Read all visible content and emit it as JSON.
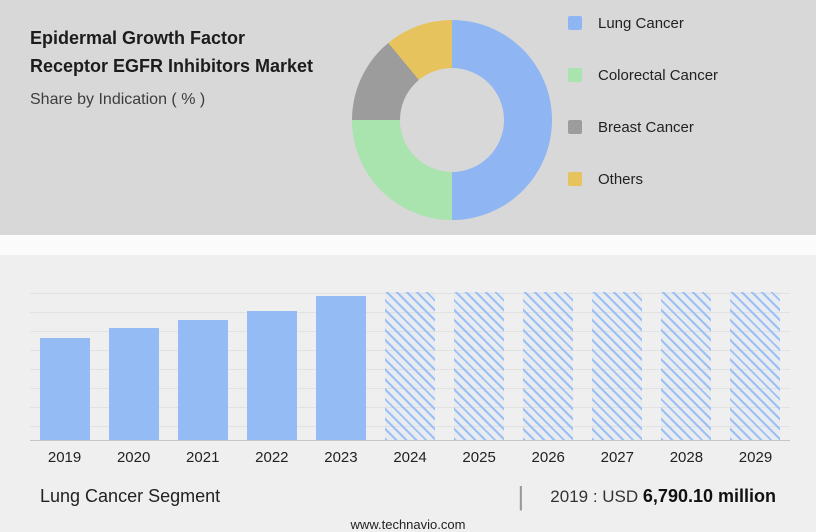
{
  "header": {
    "title_line1": "Epidermal Growth Factor",
    "title_line2": "Receptor EGFR Inhibitors Market",
    "subtitle": "Share by Indication ( % )"
  },
  "legend": {
    "items": [
      {
        "label": "Lung Cancer",
        "color": "#8fb5f2"
      },
      {
        "label": "Colorectal Cancer",
        "color": "#a9e3ae"
      },
      {
        "label": "Breast Cancer",
        "color": "#9c9c9c"
      },
      {
        "label": "Others",
        "color": "#e6c35c"
      }
    ]
  },
  "chart_data": [
    {
      "type": "pie",
      "subtype": "donut",
      "title": "Share by Indication ( % )",
      "labels": [
        "Lung Cancer",
        "Colorectal Cancer",
        "Breast Cancer",
        "Others"
      ],
      "values": [
        50,
        25,
        14,
        11
      ],
      "colors": [
        "#8fb5f2",
        "#a9e3ae",
        "#9c9c9c",
        "#e6c35c"
      ],
      "hole_ratio": 0.52,
      "legend_position": "right",
      "start_angle_deg": 0,
      "direction": "clockwise"
    },
    {
      "type": "bar",
      "categories": [
        "2019",
        "2020",
        "2021",
        "2022",
        "2023",
        "2024",
        "2025",
        "2026",
        "2027",
        "2028",
        "2029"
      ],
      "values_relative": [
        0.69,
        0.76,
        0.81,
        0.87,
        0.97,
        1,
        1,
        1,
        1,
        1,
        1
      ],
      "forecast_start": "2024",
      "forecast_style": "hatched",
      "bar_color": "#94bbf3",
      "grid": "horizontal",
      "known_values": {
        "2019": "USD 6,790.10 million"
      },
      "xlabel": "",
      "ylabel": ""
    }
  ],
  "footer": {
    "segment_label": "Lung Cancer Segment",
    "separator": "|",
    "value_prefix": "2019 : USD",
    "value_bold": "6,790.10 million",
    "website": "www.technavio.com"
  }
}
